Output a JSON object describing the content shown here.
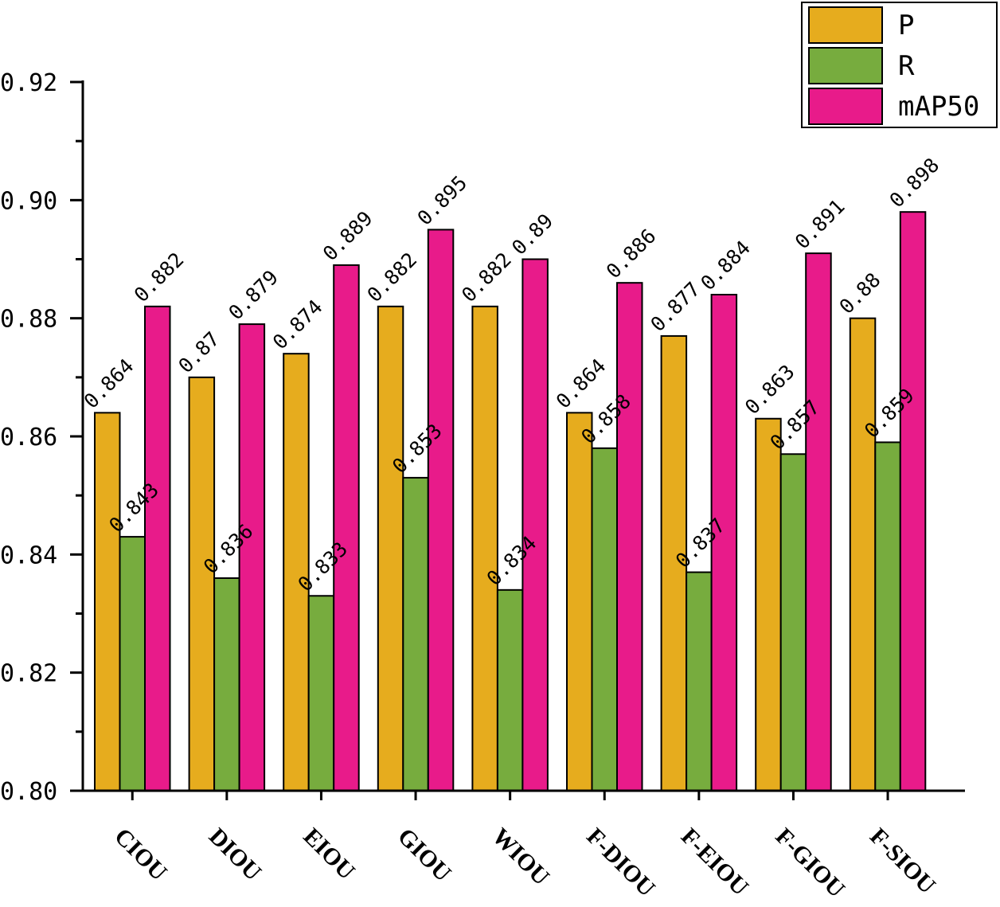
{
  "chart_data": {
    "type": "bar",
    "title": "",
    "xlabel": "",
    "ylabel": "",
    "categories": [
      "CIOU",
      "DIOU",
      "EIOU",
      "GIOU",
      "WIOU",
      "F-DIOU",
      "F-EIOU",
      "F-GIOU",
      "F-SIOU"
    ],
    "series": [
      {
        "name": "P",
        "color": "#E6AC1E",
        "values": [
          0.864,
          0.87,
          0.874,
          0.882,
          0.882,
          0.864,
          0.877,
          0.863,
          0.88
        ]
      },
      {
        "name": "R",
        "color": "#77AC3E",
        "values": [
          0.843,
          0.836,
          0.833,
          0.853,
          0.834,
          0.858,
          0.837,
          0.857,
          0.859
        ]
      },
      {
        "name": "mAP50",
        "color": "#E81B8A",
        "values": [
          0.882,
          0.879,
          0.889,
          0.895,
          0.89,
          0.886,
          0.884,
          0.891,
          0.898
        ]
      }
    ],
    "data_labels": [
      [
        "0.864",
        "0.87",
        "0.874",
        "0.882",
        "0.882",
        "0.864",
        "0.877",
        "0.863",
        "0.88"
      ],
      [
        "0.843",
        "0.836",
        "0.833",
        "0.853",
        "0.834",
        "0.858",
        "0.837",
        "0.857",
        "0.859"
      ],
      [
        "0.882",
        "0.879",
        "0.889",
        "0.895",
        "0.89",
        "0.886",
        "0.884",
        "0.891",
        "0.898"
      ]
    ],
    "ylim": [
      0.8,
      0.92
    ],
    "yticks": [
      0.8,
      0.82,
      0.84,
      0.86,
      0.88,
      0.9,
      0.92
    ],
    "ytick_labels": [
      "0.80",
      "0.82",
      "0.84",
      "0.86",
      "0.88",
      "0.90",
      "0.92"
    ],
    "grid": false,
    "legend_position": "top-right"
  }
}
